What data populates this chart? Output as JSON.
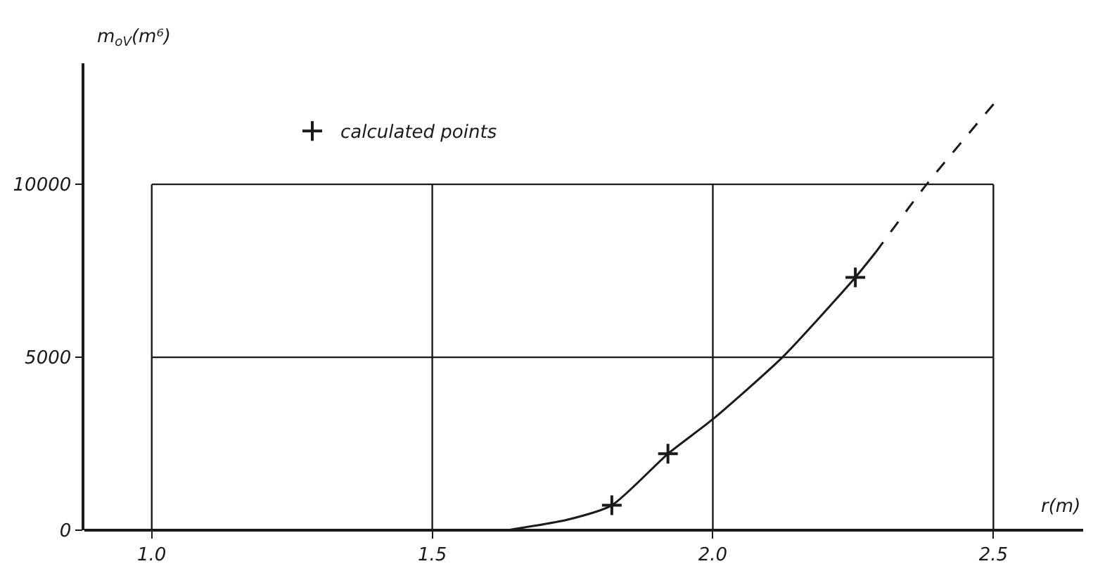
{
  "chart_data": {
    "type": "line",
    "xlabel": "r(m)",
    "ylabel": "m$_{oV}$(m⁶)",
    "xlim": [
      0.88,
      2.66
    ],
    "ylim": [
      0,
      13500
    ],
    "xticks": [
      {
        "value": 1.0,
        "label": "1.0"
      },
      {
        "value": 1.5,
        "label": "1.5"
      },
      {
        "value": 2.0,
        "label": "2.0"
      },
      {
        "value": 2.5,
        "label": "2.5"
      }
    ],
    "yticks": [
      0,
      5000,
      10000
    ],
    "grid": true,
    "legend": "top",
    "series": [
      {
        "line_style": "solid",
        "marker": "none",
        "color": "#1a1a1a",
        "x": [
          1.634,
          1.74,
          1.82,
          1.92,
          2.0,
          2.124,
          2.254,
          2.29
        ],
        "values": [
          0,
          300,
          720,
          2210,
          3210,
          5000,
          7310,
          8030
        ]
      },
      {
        "line_style": "dashed",
        "marker": "none",
        "color": "#1a1a1a",
        "x": [
          2.29,
          2.381,
          2.505
        ],
        "values": [
          8030,
          10000,
          12410
        ]
      },
      {
        "type": "scatter",
        "name": "calculated points",
        "marker": "cross",
        "color": "#1a1a1a",
        "x": [
          1.82,
          1.92,
          2.254
        ],
        "values": [
          720,
          2210,
          7310
        ]
      }
    ]
  }
}
